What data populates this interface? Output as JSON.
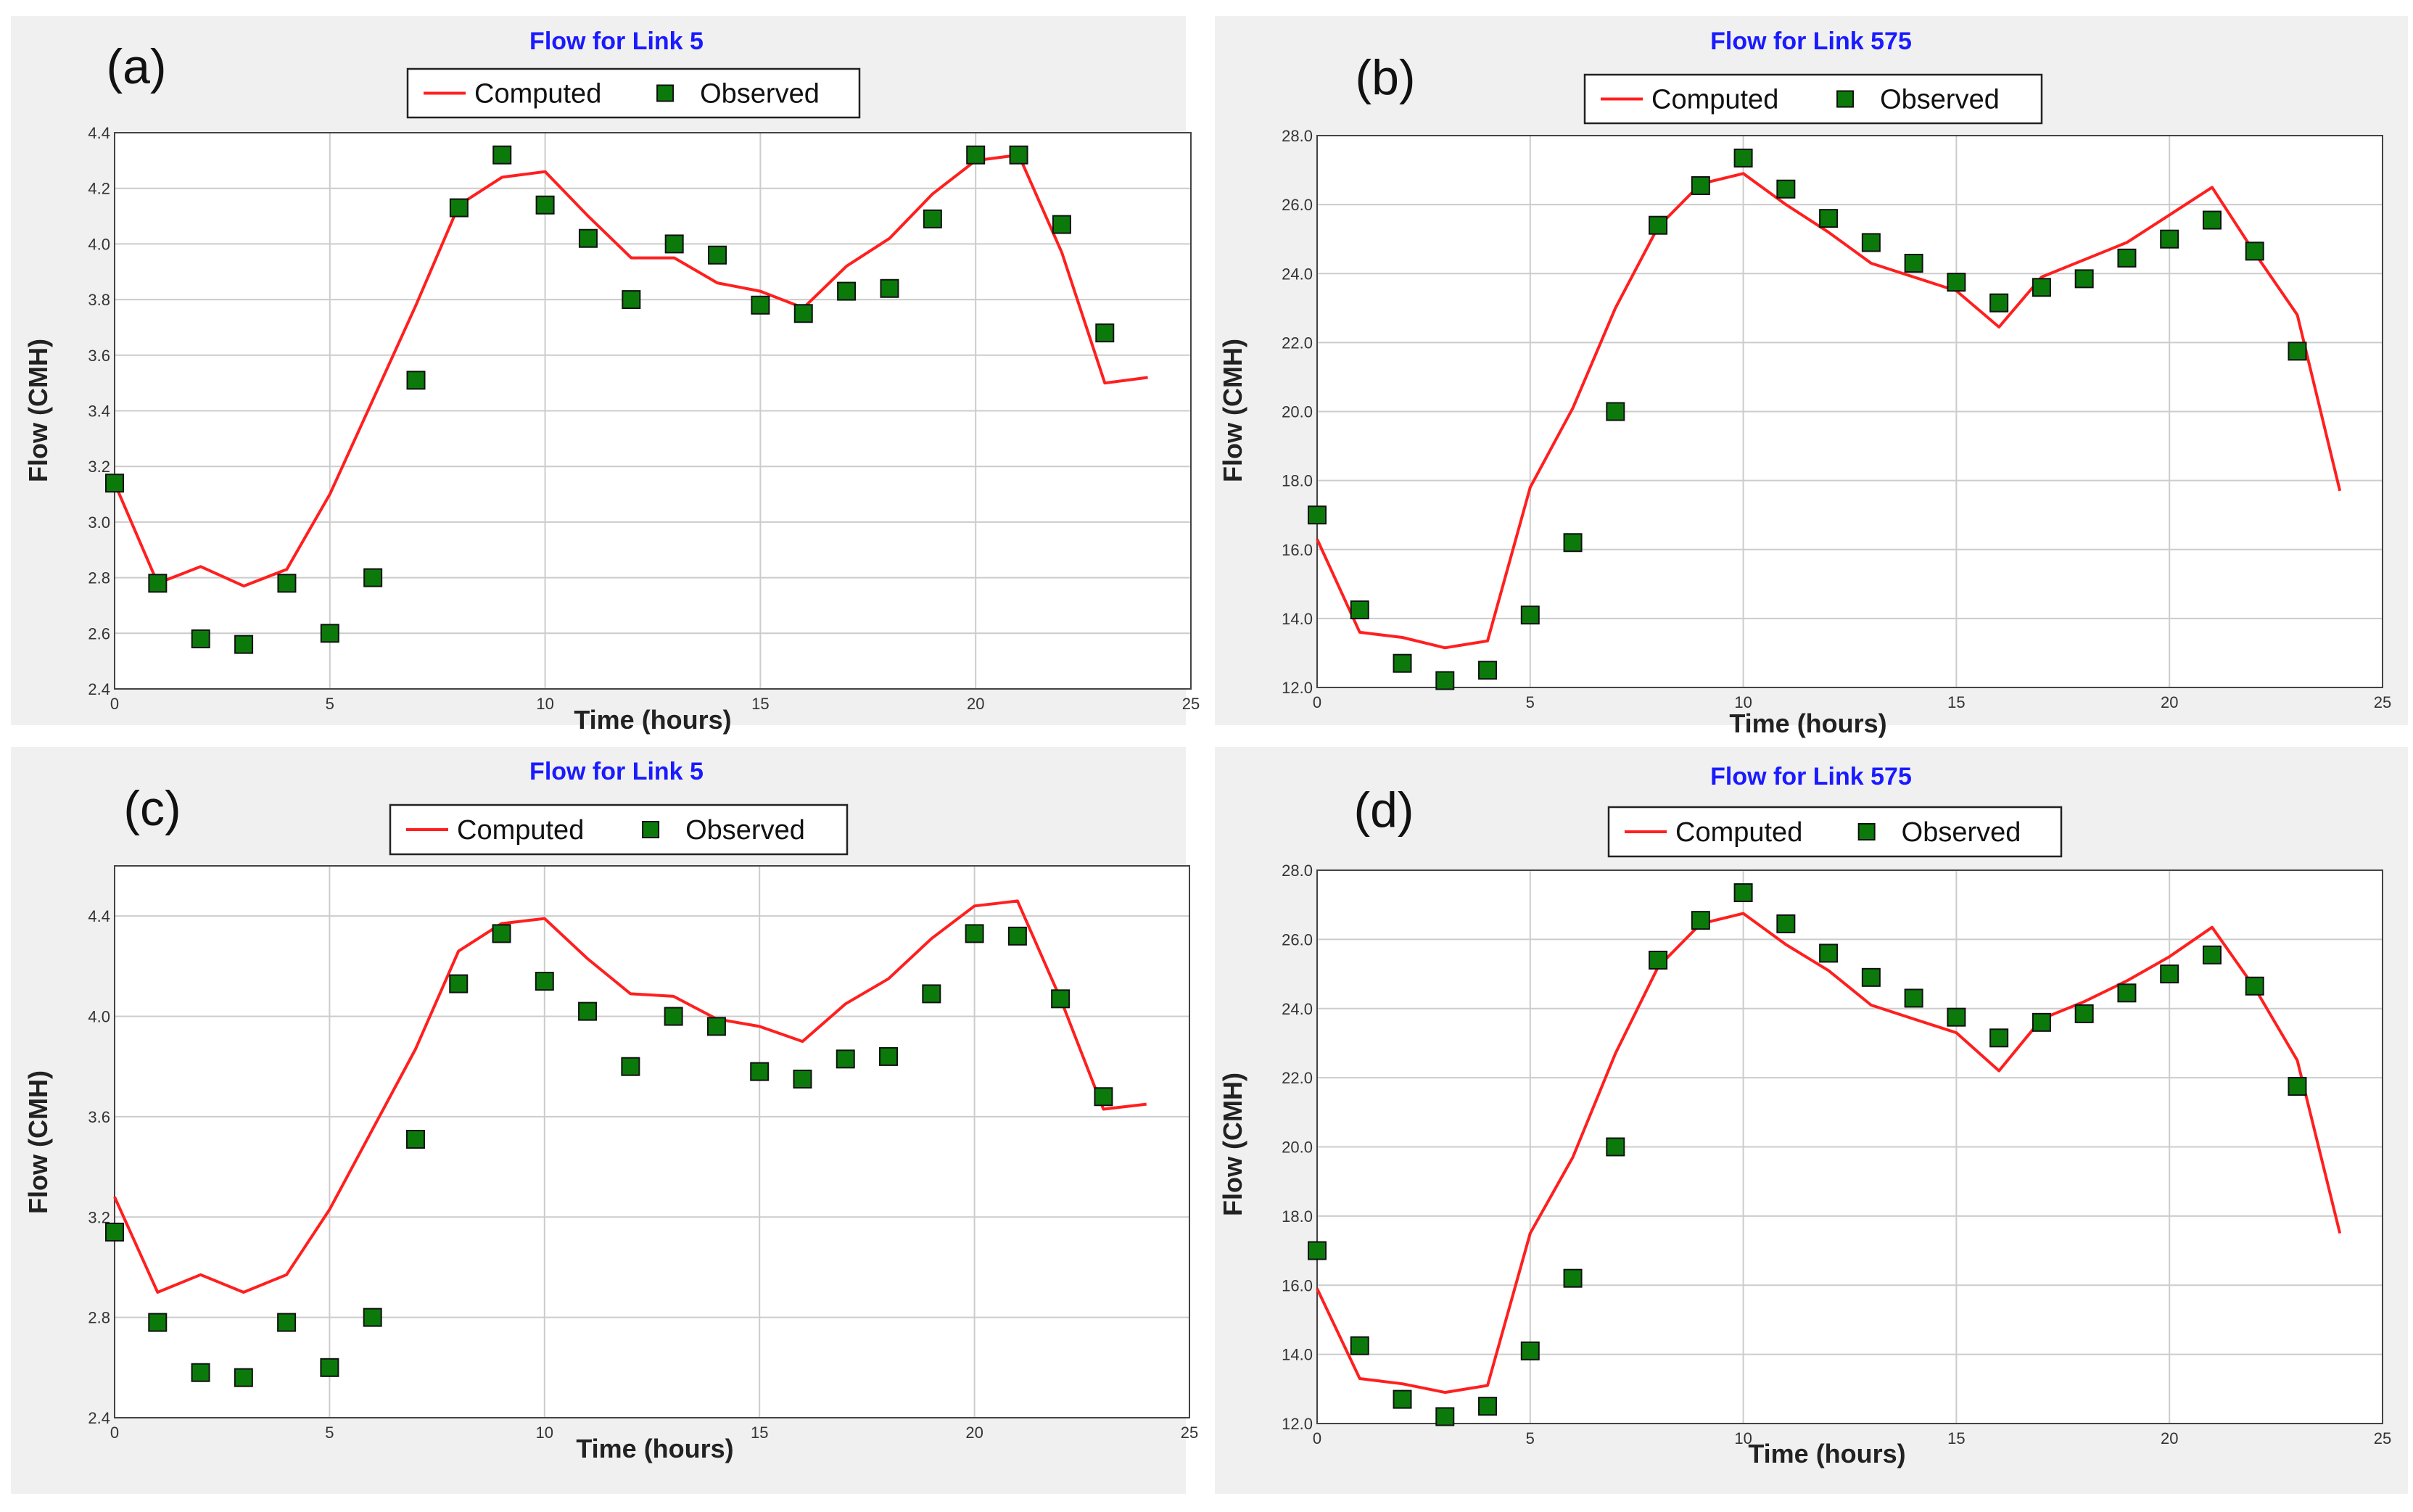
{
  "colors": {
    "computed": "#ff1f1f",
    "observed": "#0b7a0b",
    "title": "#1a1aff"
  },
  "legend": {
    "computed": "Computed",
    "observed": "Observed"
  },
  "chart_data": [
    {
      "panel": "(a)",
      "type": "line",
      "title": "Flow for Link 5",
      "xlabel": "Time (hours)",
      "ylabel": "Flow (CMH)",
      "xlim": [
        0,
        25
      ],
      "ylim": [
        2.4,
        4.4
      ],
      "xticks": [
        0,
        5,
        10,
        15,
        20,
        25
      ],
      "xtick_labels": [
        "0",
        "5",
        "10",
        "15",
        "20",
        "25"
      ],
      "yticks": [
        2.4,
        2.6,
        2.8,
        3.0,
        3.2,
        3.4,
        3.6,
        3.8,
        4.0,
        4.2,
        4.4
      ],
      "ytick_labels": [
        "2.4",
        "2.6",
        "2.8",
        "3.0",
        "3.2",
        "3.4",
        "3.6",
        "3.8",
        "4.0",
        "4.2",
        "4.4"
      ],
      "series": [
        {
          "name": "Computed",
          "kind": "line",
          "x": [
            0,
            1,
            2,
            3,
            4,
            5,
            6,
            7,
            8,
            9,
            10,
            11,
            12,
            13,
            14,
            15,
            16,
            17,
            18,
            19,
            20,
            21,
            22,
            23,
            24
          ],
          "y": [
            3.14,
            2.78,
            2.84,
            2.77,
            2.83,
            3.1,
            3.44,
            3.78,
            4.14,
            4.24,
            4.26,
            4.1,
            3.95,
            3.95,
            3.86,
            3.83,
            3.77,
            3.92,
            4.02,
            4.18,
            4.3,
            4.32,
            3.97,
            3.5,
            3.52
          ]
        },
        {
          "name": "Observed",
          "kind": "scatter",
          "x": [
            0,
            1,
            2,
            3,
            4,
            5,
            6,
            7,
            8,
            9,
            10,
            11,
            12,
            13,
            14,
            15,
            16,
            17,
            18,
            19,
            20,
            21,
            22,
            23
          ],
          "y": [
            3.14,
            2.78,
            2.58,
            2.56,
            2.78,
            2.6,
            2.8,
            3.51,
            4.13,
            4.32,
            4.14,
            4.02,
            3.8,
            4.0,
            3.96,
            3.78,
            3.75,
            3.83,
            3.84,
            4.09,
            4.32,
            4.32,
            4.07,
            3.68
          ]
        }
      ]
    },
    {
      "panel": "(b)",
      "type": "line",
      "title": "Flow for Link 575",
      "xlabel": "Time (hours)",
      "ylabel": "Flow (CMH)",
      "xlim": [
        0,
        25
      ],
      "ylim": [
        12.0,
        28.0
      ],
      "xticks": [
        0,
        5,
        10,
        15,
        20,
        25
      ],
      "xtick_labels": [
        "0",
        "5",
        "10",
        "15",
        "20",
        "25"
      ],
      "yticks": [
        12,
        14,
        16,
        18,
        20,
        22,
        24,
        26,
        28
      ],
      "ytick_labels": [
        "12.0",
        "14.0",
        "16.0",
        "18.0",
        "20.0",
        "22.0",
        "24.0",
        "26.0",
        "28.0"
      ],
      "series": [
        {
          "name": "Computed",
          "kind": "line",
          "x": [
            0,
            1,
            2,
            3,
            4,
            5,
            6,
            7,
            8,
            9,
            10,
            11,
            12,
            13,
            14,
            15,
            16,
            17,
            18,
            19,
            20,
            21,
            22,
            23,
            24
          ],
          "y": [
            16.3,
            13.6,
            13.45,
            13.15,
            13.35,
            17.8,
            20.1,
            23.0,
            25.35,
            26.6,
            26.9,
            26.0,
            25.2,
            24.3,
            23.9,
            23.5,
            22.45,
            23.9,
            24.4,
            24.9,
            25.7,
            26.5,
            24.6,
            22.8,
            17.7
          ]
        },
        {
          "name": "Observed",
          "kind": "scatter",
          "x": [
            0,
            1,
            2,
            3,
            4,
            5,
            6,
            7,
            8,
            9,
            10,
            11,
            12,
            13,
            14,
            15,
            16,
            17,
            18,
            19,
            20,
            21,
            22,
            23
          ],
          "y": [
            17.0,
            14.25,
            12.7,
            12.2,
            12.5,
            14.1,
            16.2,
            20.0,
            25.4,
            26.55,
            27.35,
            26.45,
            25.6,
            24.9,
            24.3,
            23.75,
            23.15,
            23.6,
            23.85,
            24.45,
            25.0,
            25.55,
            24.65,
            21.75
          ]
        }
      ]
    },
    {
      "panel": "(c)",
      "type": "line",
      "title": "Flow for Link 5",
      "xlabel": "Time (hours)",
      "ylabel": "Flow (CMH)",
      "xlim": [
        0,
        25
      ],
      "ylim": [
        2.4,
        4.6
      ],
      "xticks": [
        0,
        5,
        10,
        15,
        20,
        25
      ],
      "xtick_labels": [
        "0",
        "5",
        "10",
        "15",
        "20",
        "25"
      ],
      "yticks": [
        2.4,
        2.8,
        3.2,
        3.6,
        4.0,
        4.4
      ],
      "ytick_labels": [
        "2.4",
        "2.8",
        "3.2",
        "3.6",
        "4.0",
        "4.4"
      ],
      "series": [
        {
          "name": "Computed",
          "kind": "line",
          "x": [
            0,
            1,
            2,
            3,
            4,
            5,
            6,
            7,
            8,
            9,
            10,
            11,
            12,
            13,
            14,
            15,
            16,
            17,
            18,
            19,
            20,
            21,
            22,
            23,
            24
          ],
          "y": [
            3.28,
            2.9,
            2.97,
            2.9,
            2.97,
            3.23,
            3.55,
            3.87,
            4.26,
            4.37,
            4.39,
            4.23,
            4.09,
            4.08,
            3.99,
            3.96,
            3.9,
            4.05,
            4.15,
            4.31,
            4.44,
            4.46,
            4.07,
            3.63,
            3.65
          ]
        },
        {
          "name": "Observed",
          "kind": "scatter",
          "x": [
            0,
            1,
            2,
            3,
            4,
            5,
            6,
            7,
            8,
            9,
            10,
            11,
            12,
            13,
            14,
            15,
            16,
            17,
            18,
            19,
            20,
            21,
            22,
            23
          ],
          "y": [
            3.14,
            2.78,
            2.58,
            2.56,
            2.78,
            2.6,
            2.8,
            3.51,
            4.13,
            4.33,
            4.14,
            4.02,
            3.8,
            4.0,
            3.96,
            3.78,
            3.75,
            3.83,
            3.84,
            4.09,
            4.33,
            4.32,
            4.07,
            3.68
          ]
        }
      ]
    },
    {
      "panel": "(d)",
      "type": "line",
      "title": "Flow for Link 575",
      "xlabel": "Time (hours)",
      "ylabel": "Flow (CMH)",
      "xlim": [
        0,
        25
      ],
      "ylim": [
        12.0,
        28.0
      ],
      "xticks": [
        0,
        5,
        10,
        15,
        20,
        25
      ],
      "xtick_labels": [
        "0",
        "5",
        "10",
        "15",
        "20",
        "25"
      ],
      "yticks": [
        12,
        14,
        16,
        18,
        20,
        22,
        24,
        26,
        28
      ],
      "ytick_labels": [
        "12.0",
        "14.0",
        "16.0",
        "18.0",
        "20.0",
        "22.0",
        "24.0",
        "26.0",
        "28.0"
      ],
      "series": [
        {
          "name": "Computed",
          "kind": "line",
          "x": [
            0,
            1,
            2,
            3,
            4,
            5,
            6,
            7,
            8,
            9,
            10,
            11,
            12,
            13,
            14,
            15,
            16,
            17,
            18,
            19,
            20,
            21,
            22,
            23,
            24
          ],
          "y": [
            15.9,
            13.3,
            13.15,
            12.9,
            13.1,
            17.5,
            19.7,
            22.7,
            25.2,
            26.45,
            26.75,
            25.85,
            25.1,
            24.1,
            23.7,
            23.3,
            22.2,
            23.7,
            24.2,
            24.8,
            25.5,
            26.35,
            24.6,
            22.5,
            17.5
          ]
        },
        {
          "name": "Observed",
          "kind": "scatter",
          "x": [
            0,
            1,
            2,
            3,
            4,
            5,
            6,
            7,
            8,
            9,
            10,
            11,
            12,
            13,
            14,
            15,
            16,
            17,
            18,
            19,
            20,
            21,
            22,
            23
          ],
          "y": [
            17.0,
            14.25,
            12.7,
            12.2,
            12.5,
            14.1,
            16.2,
            20.0,
            25.4,
            26.55,
            27.35,
            26.45,
            25.6,
            24.9,
            24.3,
            23.75,
            23.15,
            23.6,
            23.85,
            24.45,
            25.0,
            25.55,
            24.65,
            21.75
          ]
        }
      ]
    }
  ]
}
